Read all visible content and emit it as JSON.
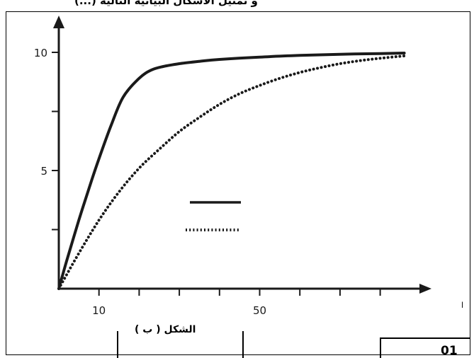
{
  "header": {
    "top_text": "و تمثيل الأشكال البيانية التالية (...)"
  },
  "caption": "الشكل ( ب )",
  "page_number": "01",
  "stray_mark": "ا",
  "chart_data": {
    "type": "line",
    "title": "",
    "xlabel": "",
    "ylabel": "",
    "xlim": [
      0,
      90
    ],
    "ylim": [
      0,
      10.8
    ],
    "x_tick_labels": [
      {
        "value": 10,
        "label": "10"
      },
      {
        "value": 50,
        "label": "50"
      }
    ],
    "x_minor_ticks": [
      10,
      20,
      30,
      40,
      50,
      60,
      70,
      80
    ],
    "y_tick_labels": [
      {
        "value": 5,
        "label": "5"
      },
      {
        "value": 10,
        "label": "10"
      }
    ],
    "y_minor_ticks": [
      2.5,
      7.5
    ],
    "grid": false,
    "legend": "center",
    "series": [
      {
        "style": "solid",
        "color": "#1a1a1a",
        "x": [
          0,
          2,
          5,
          8,
          10,
          13,
          16,
          20,
          23,
          26,
          30,
          35,
          40,
          50,
          60,
          70,
          80,
          86
        ],
        "y": [
          0,
          1.2,
          2.9,
          4.5,
          5.5,
          6.9,
          8.1,
          8.9,
          9.25,
          9.4,
          9.52,
          9.62,
          9.7,
          9.8,
          9.87,
          9.92,
          9.95,
          9.97
        ]
      },
      {
        "style": "dotted",
        "color": "#1a1a1a",
        "x": [
          0,
          5,
          10,
          15,
          20,
          25,
          30,
          35,
          40,
          45,
          50,
          55,
          60,
          65,
          70,
          75,
          80,
          86
        ],
        "y": [
          0,
          1.5,
          2.9,
          4.1,
          5.1,
          5.9,
          6.65,
          7.25,
          7.8,
          8.25,
          8.6,
          8.9,
          9.15,
          9.35,
          9.52,
          9.65,
          9.75,
          9.85
        ]
      }
    ]
  }
}
